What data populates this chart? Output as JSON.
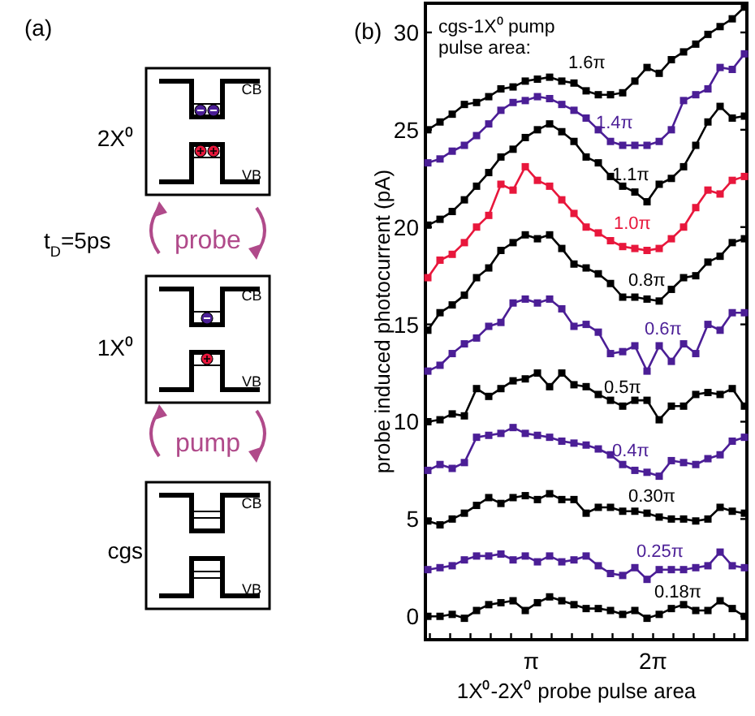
{
  "chart_data": [
    {
      "type": "other",
      "annotations": [
        "(a)",
        "2X⁰",
        "CB",
        "VB",
        "t$_{D}$=5ps",
        "probe",
        "1X⁰",
        "CB",
        "VB",
        "pump",
        "cgs",
        "CB",
        "VB"
      ]
    },
    {
      "type": "line",
      "title": "(b)",
      "xlabel": "1X⁰-2X⁰ probe pulse area",
      "ylabel": "probe induced photocurrent (pA)",
      "legend_title": "cgs-1X⁰ pump pulse area:",
      "x": [
        0.471,
        0.785,
        1.1,
        1.414,
        1.728,
        2.042,
        2.356,
        2.67,
        2.985,
        3.299,
        3.613,
        3.927,
        4.241,
        4.555,
        4.869,
        5.184,
        5.498,
        5.812,
        6.126,
        6.44,
        6.754,
        7.069,
        7.383,
        7.697,
        8.011,
        8.325,
        8.639
      ],
      "xlim": [
        0.408,
        8.702
      ],
      "ylim": [
        -1.2,
        31.5
      ],
      "xticks": [
        {
          "value": 0.524,
          "label": null
        },
        {
          "value": 1.047,
          "label": null
        },
        {
          "value": 1.571,
          "label": null
        },
        {
          "value": 2.094,
          "label": null
        },
        {
          "value": 2.618,
          "label": null
        },
        {
          "value": 3.142,
          "label": "π"
        },
        {
          "value": 3.665,
          "label": null
        },
        {
          "value": 4.189,
          "label": null
        },
        {
          "value": 4.712,
          "label": null
        },
        {
          "value": 5.236,
          "label": null
        },
        {
          "value": 5.76,
          "label": null
        },
        {
          "value": 6.283,
          "label": "2π"
        },
        {
          "value": 6.807,
          "label": null
        },
        {
          "value": 7.33,
          "label": null
        },
        {
          "value": 7.854,
          "label": null
        },
        {
          "value": 8.378,
          "label": null
        }
      ],
      "yticks": [
        0,
        5,
        10,
        15,
        20,
        25,
        30
      ],
      "grid": false,
      "marker": "square",
      "line_style": "solid",
      "series": [
        {
          "color": "#000000",
          "values": [
            25.0,
            25.4,
            25.8,
            26.3,
            26.4,
            26.7,
            27.1,
            27.2,
            27.5,
            27.6,
            27.7,
            27.5,
            27.4,
            27.0,
            26.8,
            26.8,
            26.9,
            27.5,
            28.2,
            27.9,
            28.6,
            29.0,
            29.4,
            29.9,
            30.3,
            30.7,
            31.3
          ]
        },
        {
          "color": "#4b1e96",
          "values": [
            23.3,
            23.5,
            23.9,
            24.2,
            24.7,
            25.3,
            26.0,
            26.4,
            26.5,
            26.7,
            26.6,
            26.3,
            26.0,
            25.6,
            25.0,
            24.4,
            24.2,
            24.2,
            24.2,
            24.4,
            25.0,
            26.5,
            26.8,
            27.1,
            28.2,
            28.1,
            28.9
          ]
        },
        {
          "color": "#000000",
          "values": [
            20.1,
            20.4,
            20.8,
            21.4,
            22.1,
            22.8,
            23.6,
            24.0,
            24.6,
            25.0,
            25.3,
            24.9,
            24.4,
            23.6,
            23.3,
            22.6,
            22.1,
            21.8,
            21.3,
            22.2,
            22.5,
            23.1,
            24.2,
            25.4,
            26.2,
            25.6,
            25.7
          ]
        },
        {
          "color": "#e8173c",
          "values": [
            17.4,
            18.3,
            18.6,
            19.2,
            20.0,
            20.6,
            22.2,
            21.9,
            23.1,
            22.4,
            22.1,
            21.4,
            20.7,
            20.0,
            19.7,
            19.3,
            19.0,
            18.9,
            18.8,
            18.9,
            19.4,
            20.0,
            21.0,
            21.9,
            21.7,
            22.4,
            22.6
          ]
        },
        {
          "color": "#000000",
          "values": [
            14.7,
            15.6,
            16.0,
            16.5,
            17.4,
            17.9,
            18.8,
            19.2,
            19.6,
            19.4,
            19.6,
            18.9,
            18.1,
            17.9,
            17.6,
            17.1,
            16.4,
            16.4,
            16.3,
            16.2,
            16.8,
            17.4,
            17.5,
            18.2,
            18.5,
            19.2,
            19.4
          ]
        },
        {
          "color": "#4b1e96",
          "values": [
            12.6,
            12.9,
            13.5,
            14.0,
            14.3,
            14.9,
            15.1,
            16.1,
            16.3,
            16.1,
            16.3,
            15.8,
            14.9,
            15.0,
            14.6,
            13.5,
            13.6,
            13.9,
            12.6,
            13.9,
            13.1,
            14.0,
            13.5,
            15.0,
            14.7,
            15.6,
            15.6
          ]
        },
        {
          "color": "#000000",
          "values": [
            10.0,
            10.1,
            10.4,
            10.3,
            11.7,
            11.3,
            11.7,
            12.1,
            12.2,
            12.5,
            11.8,
            12.5,
            11.9,
            11.8,
            11.4,
            11.1,
            10.8,
            11.1,
            11.1,
            10.1,
            10.8,
            10.8,
            11.4,
            11.5,
            11.4,
            11.7,
            10.8
          ]
        },
        {
          "color": "#4b1e96",
          "values": [
            7.5,
            7.8,
            7.6,
            7.9,
            9.2,
            9.3,
            9.4,
            9.7,
            9.4,
            9.3,
            9.2,
            9.0,
            8.9,
            8.8,
            8.6,
            8.3,
            7.8,
            7.5,
            7.4,
            7.2,
            8.0,
            7.9,
            7.8,
            8.1,
            8.3,
            9.0,
            9.2
          ]
        },
        {
          "color": "#000000",
          "values": [
            4.9,
            4.7,
            5.0,
            5.3,
            5.7,
            6.1,
            5.8,
            6.1,
            6.2,
            6.0,
            6.3,
            6.0,
            6.0,
            5.3,
            5.6,
            5.6,
            5.4,
            5.4,
            5.3,
            5.1,
            5.0,
            5.0,
            4.9,
            5.0,
            5.6,
            5.4,
            5.3
          ]
        },
        {
          "color": "#4b1e96",
          "values": [
            2.4,
            2.5,
            2.6,
            2.9,
            3.1,
            3.1,
            3.2,
            2.9,
            3.1,
            2.8,
            3.1,
            2.8,
            2.9,
            3.1,
            2.6,
            2.2,
            2.1,
            2.5,
            1.9,
            2.4,
            2.4,
            2.4,
            2.5,
            2.6,
            3.3,
            2.6,
            2.5
          ]
        },
        {
          "color": "#000000",
          "values": [
            0.0,
            0.0,
            0.1,
            -0.1,
            0.3,
            0.6,
            0.7,
            0.8,
            0.3,
            0.7,
            1.0,
            0.8,
            0.6,
            0.4,
            0.4,
            0.3,
            0.1,
            0.3,
            -0.1,
            0.1,
            0.4,
            0.6,
            0.3,
            0.3,
            0.8,
            0.4,
            0.0
          ]
        }
      ],
      "annotations": [
        "1.6π",
        "1.4π",
        "1.1π",
        "1.0π",
        "0.8π",
        "0.6π",
        "0.5π",
        "0.4π",
        "0.30π",
        "0.25π",
        "0.18π"
      ]
    }
  ]
}
